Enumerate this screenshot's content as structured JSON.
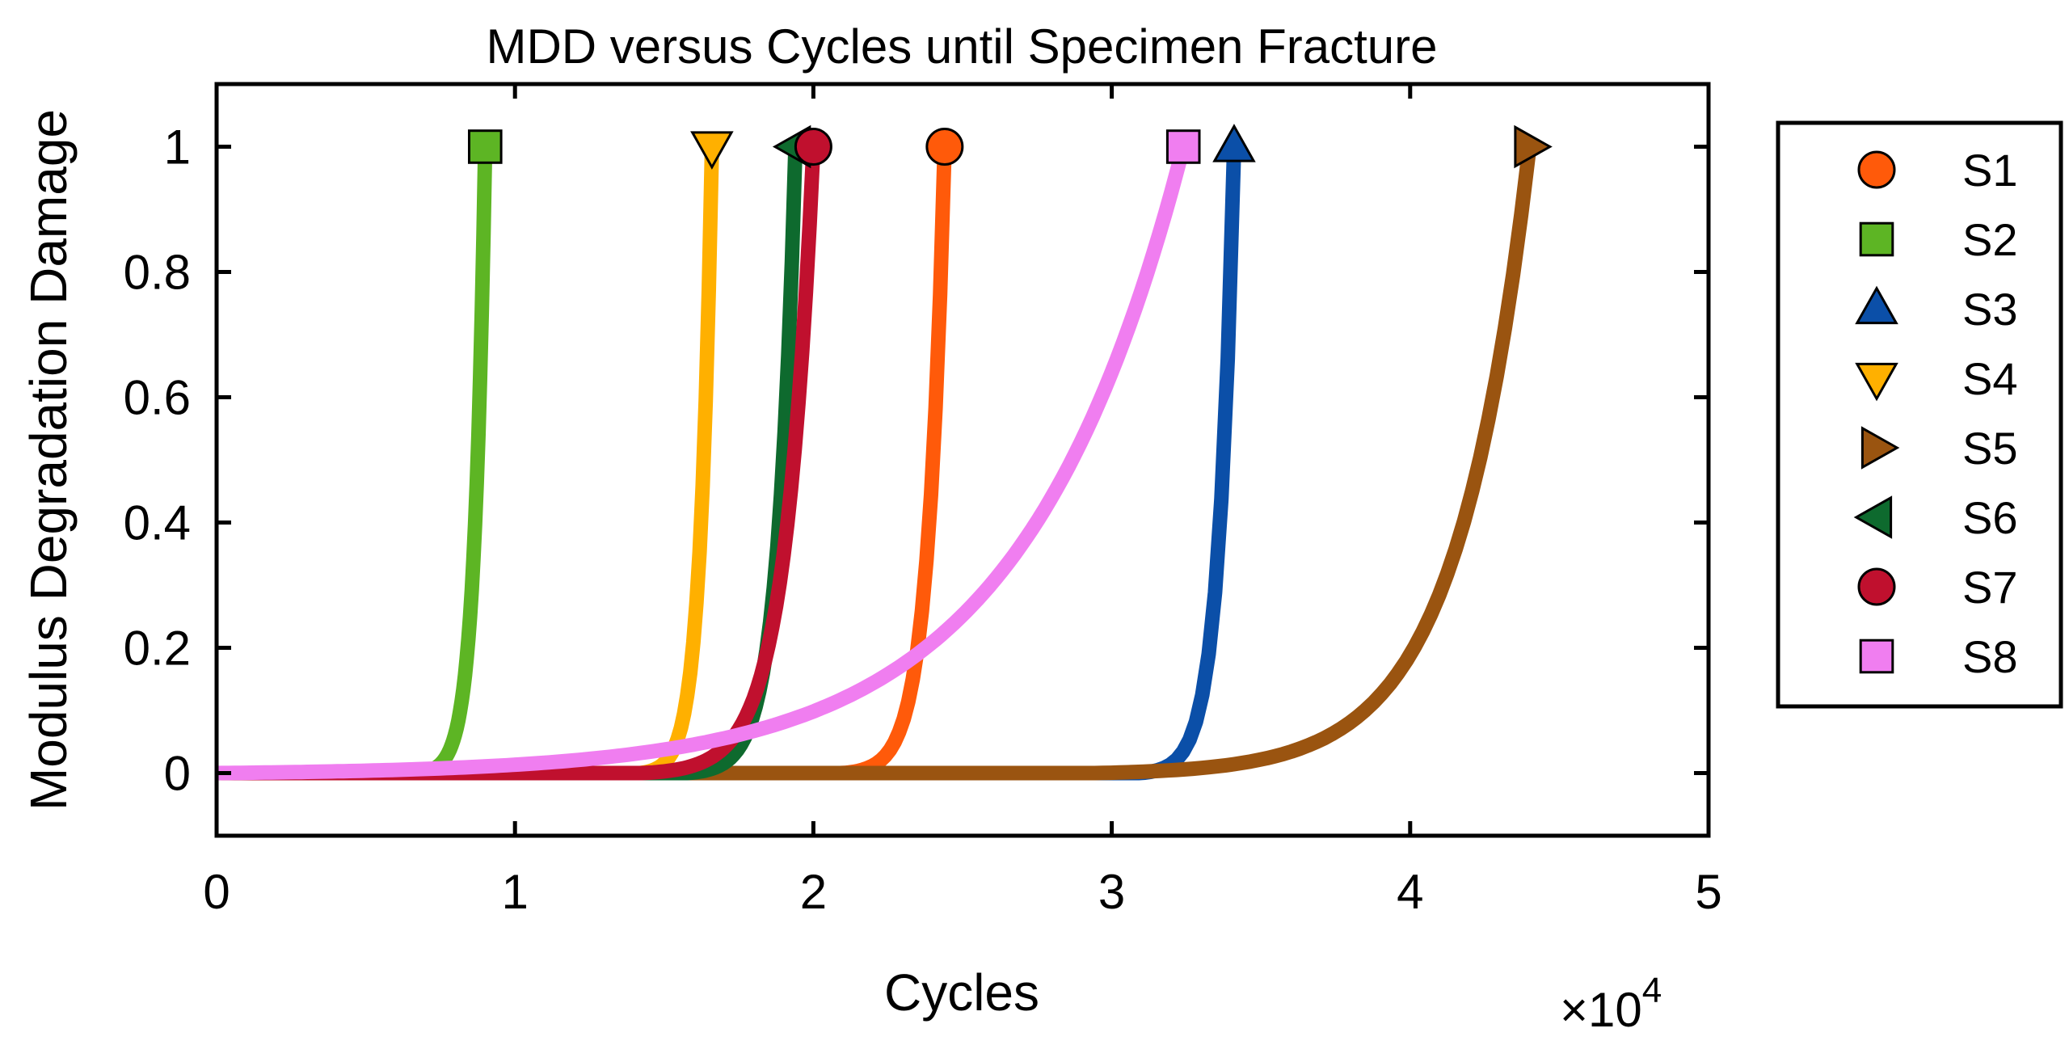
{
  "chart_data": {
    "type": "line",
    "title": "MDD versus Cycles until Specimen Fracture",
    "xlabel": "Cycles",
    "ylabel": "Modulus Degradation Damage",
    "x_exponent_label": "×10",
    "x_exponent_power": "4",
    "xlim": [
      0,
      50000
    ],
    "ylim": [
      -0.1,
      1.1
    ],
    "x_ticks": [
      0,
      10000,
      20000,
      30000,
      40000,
      50000
    ],
    "x_tick_labels": [
      "0",
      "1",
      "2",
      "3",
      "4",
      "5"
    ],
    "y_ticks": [
      0,
      0.2,
      0.4,
      0.6,
      0.8,
      1
    ],
    "y_tick_labels": [
      "0",
      "0.2",
      "0.4",
      "0.6",
      "0.8",
      "1"
    ],
    "grid": false,
    "legend_position": "outside-right",
    "series": [
      {
        "name": "S1",
        "marker": "circle",
        "color": "#ff5a0a",
        "fracture_cycles": 24400,
        "onset_cycles": 21000,
        "final_damage": 1
      },
      {
        "name": "S2",
        "marker": "square",
        "color": "#5db524",
        "fracture_cycles": 9000,
        "onset_cycles": 6800,
        "final_damage": 1
      },
      {
        "name": "S3",
        "marker": "triangle-up",
        "color": "#0b4fa8",
        "fracture_cycles": 34100,
        "onset_cycles": 31000,
        "final_damage": 1
      },
      {
        "name": "S4",
        "marker": "triangle-down",
        "color": "#ffb000",
        "fracture_cycles": 16600,
        "onset_cycles": 14200,
        "final_damage": 1
      },
      {
        "name": "S5",
        "marker": "triangle-right",
        "color": "#9a5410",
        "fracture_cycles": 44000,
        "onset_cycles": 29500,
        "final_damage": 1
      },
      {
        "name": "S6",
        "marker": "triangle-left",
        "color": "#0e6a2e",
        "fracture_cycles": 19400,
        "onset_cycles": 15800,
        "final_damage": 1
      },
      {
        "name": "S7",
        "marker": "circle",
        "color": "#c0102e",
        "fracture_cycles": 20000,
        "onset_cycles": 14300,
        "final_damage": 1
      },
      {
        "name": "S8",
        "marker": "square",
        "color": "#f07ef0",
        "fracture_cycles": 32400,
        "onset_cycles": 0,
        "final_damage": 1
      }
    ]
  }
}
